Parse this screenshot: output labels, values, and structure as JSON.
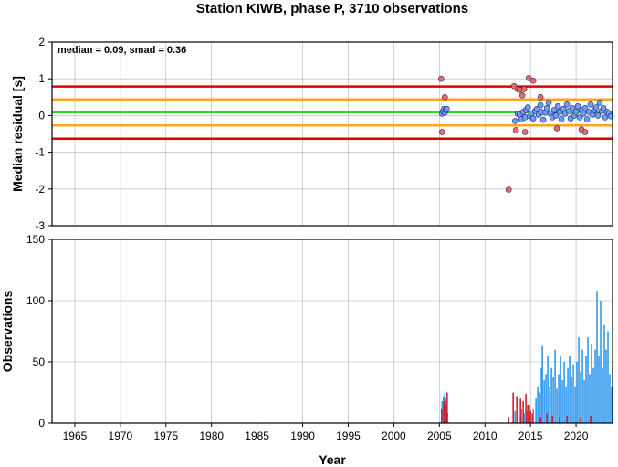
{
  "chart_data": [
    {
      "type": "scatter",
      "title": "Station KIWB, phase P, 3710 observations",
      "xlabel": "",
      "ylabel": "Median residual [s]",
      "xlim": [
        1962.5,
        2024
      ],
      "ylim": [
        -3,
        2
      ],
      "y_ticks": [
        -3,
        -2,
        -1,
        0,
        1,
        2
      ],
      "grid": true,
      "annotation": "median = 0.09, smad = 0.36",
      "reference_lines": [
        {
          "value": 0.09,
          "color": "#22dd22"
        },
        {
          "value": 0.44,
          "color": "#f5a623"
        },
        {
          "value": -0.27,
          "color": "#f5a623"
        },
        {
          "value": 0.79,
          "color": "#dd0000"
        },
        {
          "value": -0.63,
          "color": "#dd0000"
        }
      ],
      "series": [
        {
          "color": "#6f9df0",
          "points": [
            [
              2005.3,
              0.05
            ],
            [
              2005.4,
              0.12
            ],
            [
              2005.5,
              0.18
            ],
            [
              2005.6,
              0.08
            ],
            [
              2005.7,
              0.15
            ],
            [
              2005.8,
              0.18
            ],
            [
              2013.3,
              -0.15
            ],
            [
              2013.6,
              0.05
            ],
            [
              2013.8,
              0.02
            ],
            [
              2014.0,
              -0.1
            ],
            [
              2014.2,
              0.1
            ],
            [
              2014.4,
              -0.05
            ],
            [
              2014.5,
              0.15
            ],
            [
              2014.7,
              0.22
            ],
            [
              2014.9,
              -0.02
            ],
            [
              2015.1,
              0.05
            ],
            [
              2015.3,
              -0.08
            ],
            [
              2015.5,
              0.12
            ],
            [
              2015.7,
              0.18
            ],
            [
              2015.9,
              0.02
            ],
            [
              2016.1,
              0.28
            ],
            [
              2016.2,
              0.1
            ],
            [
              2016.4,
              -0.12
            ],
            [
              2016.6,
              0.08
            ],
            [
              2016.8,
              0.2
            ],
            [
              2017.0,
              0.35
            ],
            [
              2017.2,
              0.05
            ],
            [
              2017.4,
              -0.05
            ],
            [
              2017.6,
              0.15
            ],
            [
              2017.8,
              0.0
            ],
            [
              2018.0,
              0.25
            ],
            [
              2018.2,
              0.1
            ],
            [
              2018.4,
              -0.1
            ],
            [
              2018.6,
              0.18
            ],
            [
              2018.8,
              0.05
            ],
            [
              2019.0,
              0.3
            ],
            [
              2019.2,
              0.12
            ],
            [
              2019.4,
              -0.08
            ],
            [
              2019.6,
              0.2
            ],
            [
              2019.8,
              0.0
            ],
            [
              2020.0,
              0.1
            ],
            [
              2020.2,
              0.25
            ],
            [
              2020.4,
              -0.05
            ],
            [
              2020.6,
              0.15
            ],
            [
              2020.8,
              0.05
            ],
            [
              2021.0,
              0.2
            ],
            [
              2021.2,
              -0.1
            ],
            [
              2021.4,
              0.1
            ],
            [
              2021.6,
              0.3
            ],
            [
              2021.8,
              0.02
            ],
            [
              2022.0,
              0.15
            ],
            [
              2022.2,
              0.22
            ],
            [
              2022.4,
              0.0
            ],
            [
              2022.6,
              0.35
            ],
            [
              2022.8,
              0.12
            ],
            [
              2023.0,
              0.2
            ],
            [
              2023.2,
              -0.05
            ],
            [
              2023.4,
              0.1
            ],
            [
              2023.6,
              0.05
            ],
            [
              2023.8,
              -0.02
            ]
          ]
        },
        {
          "color": "#f26a5a",
          "points": [
            [
              2005.2,
              1.0
            ],
            [
              2005.3,
              -0.45
            ],
            [
              2005.6,
              0.5
            ],
            [
              2012.6,
              -2.02
            ],
            [
              2013.2,
              0.8
            ],
            [
              2013.4,
              -0.4
            ],
            [
              2013.6,
              0.72
            ],
            [
              2013.8,
              0.7
            ],
            [
              2014.1,
              0.55
            ],
            [
              2014.3,
              0.72
            ],
            [
              2014.4,
              -0.45
            ],
            [
              2014.8,
              1.02
            ],
            [
              2015.3,
              0.95
            ],
            [
              2016.1,
              0.5
            ],
            [
              2017.9,
              -0.35
            ],
            [
              2020.6,
              -0.38
            ],
            [
              2021.0,
              -0.45
            ]
          ]
        }
      ]
    },
    {
      "type": "bar",
      "xlabel": "Year",
      "ylabel": "Observations",
      "xlim": [
        1962.5,
        2024
      ],
      "ylim": [
        0,
        150
      ],
      "x_ticks": [
        1965,
        1970,
        1975,
        1980,
        1985,
        1990,
        1995,
        2000,
        2005,
        2010,
        2015,
        2020
      ],
      "y_ticks": [
        0,
        50,
        100,
        150
      ],
      "grid": true,
      "series": [
        {
          "color": "#3399ee",
          "bars": [
            [
              2005.3,
              18
            ],
            [
              2005.45,
              22
            ],
            [
              2005.6,
              25
            ],
            [
              2005.75,
              20
            ],
            [
              2005.9,
              8
            ],
            [
              2013.3,
              10
            ],
            [
              2013.6,
              8
            ],
            [
              2014.0,
              12
            ],
            [
              2014.3,
              8
            ],
            [
              2014.6,
              10
            ],
            [
              2014.9,
              15
            ],
            [
              2015.3,
              12
            ],
            [
              2015.6,
              20
            ],
            [
              2015.8,
              30
            ],
            [
              2016.0,
              25
            ],
            [
              2016.2,
              45
            ],
            [
              2016.3,
              63
            ],
            [
              2016.5,
              35
            ],
            [
              2016.7,
              40
            ],
            [
              2016.9,
              55
            ],
            [
              2017.1,
              30
            ],
            [
              2017.3,
              45
            ],
            [
              2017.5,
              38
            ],
            [
              2017.7,
              60
            ],
            [
              2017.9,
              28
            ],
            [
              2018.1,
              40
            ],
            [
              2018.3,
              55
            ],
            [
              2018.5,
              35
            ],
            [
              2018.7,
              50
            ],
            [
              2018.9,
              30
            ],
            [
              2019.1,
              45
            ],
            [
              2019.3,
              55
            ],
            [
              2019.5,
              38
            ],
            [
              2019.7,
              48
            ],
            [
              2019.9,
              30
            ],
            [
              2020.1,
              50
            ],
            [
              2020.3,
              70
            ],
            [
              2020.5,
              42
            ],
            [
              2020.7,
              60
            ],
            [
              2020.9,
              35
            ],
            [
              2021.1,
              55
            ],
            [
              2021.3,
              70
            ],
            [
              2021.5,
              40
            ],
            [
              2021.7,
              65
            ],
            [
              2021.9,
              45
            ],
            [
              2022.1,
              60
            ],
            [
              2022.3,
              108
            ],
            [
              2022.5,
              55
            ],
            [
              2022.7,
              100
            ],
            [
              2022.9,
              45
            ],
            [
              2023.1,
              80
            ],
            [
              2023.3,
              60
            ],
            [
              2023.5,
              75
            ],
            [
              2023.7,
              40
            ],
            [
              2023.9,
              30
            ]
          ]
        },
        {
          "color": "#cc2233",
          "bars": [
            [
              2005.25,
              12
            ],
            [
              2005.5,
              18
            ],
            [
              2005.7,
              15
            ],
            [
              2005.85,
              25
            ],
            [
              2012.6,
              5
            ],
            [
              2013.1,
              25
            ],
            [
              2013.5,
              22
            ],
            [
              2013.9,
              20
            ],
            [
              2014.2,
              18
            ],
            [
              2014.5,
              24
            ],
            [
              2014.7,
              15
            ],
            [
              2015.0,
              10
            ],
            [
              2015.2,
              8
            ],
            [
              2016.1,
              5
            ],
            [
              2016.8,
              8
            ],
            [
              2017.4,
              6
            ],
            [
              2018.2,
              5
            ],
            [
              2019.0,
              6
            ],
            [
              2020.5,
              5
            ],
            [
              2021.6,
              6
            ]
          ]
        }
      ]
    }
  ]
}
